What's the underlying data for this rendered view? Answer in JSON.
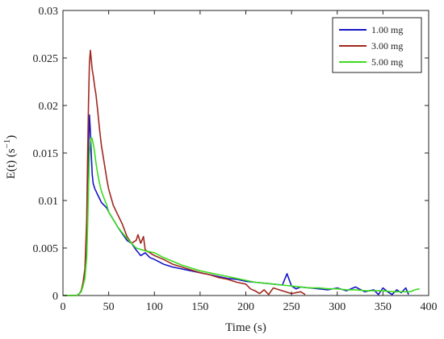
{
  "chart_data": {
    "type": "line",
    "xlabel": "Time (s)",
    "ylabel": "E(t) (s",
    "ylabel_sup": "−1",
    "ylabel_close": ")",
    "xlim": [
      0,
      400
    ],
    "ylim": [
      0,
      0.03
    ],
    "grid": false,
    "legend_position": "top-right",
    "xticks": [
      0,
      50,
      100,
      150,
      200,
      250,
      300,
      350,
      400
    ],
    "xtick_labels": [
      "0",
      "50",
      "100",
      "150",
      "200",
      "250",
      "300",
      "350",
      "400"
    ],
    "yticks": [
      0,
      0.005,
      0.01,
      0.015,
      0.02,
      0.025,
      0.03
    ],
    "ytick_labels": [
      "0",
      "0.005",
      "0.01",
      "0.015",
      "0.02",
      "0.025",
      "0.03"
    ],
    "series": [
      {
        "name": "1.00 mg",
        "color": "#1414c8",
        "x": [
          0,
          10,
          15,
          18,
          20,
          22,
          24,
          26,
          27,
          28,
          29,
          30,
          31,
          32,
          33,
          34,
          35,
          36,
          38,
          40,
          42,
          45,
          48,
          50,
          55,
          60,
          65,
          70,
          75,
          80,
          85,
          90,
          95,
          100,
          110,
          120,
          130,
          140,
          150,
          160,
          170,
          180,
          190,
          200,
          210,
          220,
          230,
          240,
          245,
          250,
          255,
          260,
          270,
          280,
          290,
          300,
          310,
          320,
          330,
          340,
          345,
          350,
          355,
          360,
          365,
          370,
          375,
          378
        ],
        "y": [
          0,
          0,
          0,
          0.0002,
          0.0005,
          0.0012,
          0.0022,
          0.006,
          0.011,
          0.0158,
          0.019,
          0.0172,
          0.0148,
          0.0128,
          0.0118,
          0.0115,
          0.0112,
          0.011,
          0.0106,
          0.0102,
          0.0098,
          0.0095,
          0.0092,
          0.0088,
          0.008,
          0.0072,
          0.0065,
          0.0058,
          0.0055,
          0.0048,
          0.0042,
          0.0045,
          0.004,
          0.0038,
          0.0033,
          0.003,
          0.0028,
          0.0026,
          0.0024,
          0.0022,
          0.002,
          0.0018,
          0.0017,
          0.0015,
          0.0014,
          0.0013,
          0.0012,
          0.0011,
          0.0023,
          0.001,
          0.0007,
          0.0009,
          0.0008,
          0.0007,
          0.0006,
          0.0008,
          0.0005,
          0.0009,
          0.0004,
          0.0006,
          0.0001,
          0.0008,
          0.0004,
          0.0001,
          0.0006,
          0.0003,
          0.0008,
          0.0001
        ]
      },
      {
        "name": "3.00 mg",
        "color": "#a0281e",
        "x": [
          0,
          10,
          15,
          18,
          20,
          22,
          24,
          26,
          27,
          28,
          29,
          30,
          31,
          32,
          33,
          34,
          35,
          36,
          38,
          40,
          42,
          45,
          48,
          50,
          55,
          60,
          65,
          70,
          75,
          80,
          82,
          85,
          88,
          90,
          95,
          100,
          110,
          120,
          130,
          140,
          150,
          160,
          170,
          180,
          190,
          200,
          205,
          210,
          215,
          220,
          225,
          230,
          240,
          250,
          260,
          265
        ],
        "y": [
          0,
          0,
          0,
          0.0002,
          0.0005,
          0.0014,
          0.0028,
          0.008,
          0.015,
          0.0205,
          0.0245,
          0.0258,
          0.0248,
          0.0238,
          0.0232,
          0.0225,
          0.0218,
          0.0212,
          0.0195,
          0.0175,
          0.0158,
          0.014,
          0.0122,
          0.0112,
          0.0095,
          0.0085,
          0.0075,
          0.0062,
          0.0055,
          0.0058,
          0.0064,
          0.0055,
          0.0062,
          0.0048,
          0.0045,
          0.0042,
          0.0038,
          0.0033,
          0.003,
          0.0027,
          0.0024,
          0.0022,
          0.0019,
          0.0017,
          0.0014,
          0.0012,
          0.0007,
          0.0005,
          0.0002,
          0.0006,
          0.0001,
          0.0008,
          0.0005,
          0.0002,
          0.0004,
          0.0001
        ]
      },
      {
        "name": "5.00 mg",
        "color": "#3cdc1e",
        "x": [
          0,
          10,
          15,
          18,
          20,
          22,
          24,
          26,
          27,
          28,
          29,
          30,
          31,
          32,
          33,
          34,
          35,
          36,
          38,
          40,
          42,
          45,
          48,
          50,
          55,
          60,
          65,
          70,
          75,
          80,
          90,
          100,
          110,
          120,
          130,
          140,
          150,
          160,
          170,
          180,
          190,
          200,
          210,
          220,
          230,
          240,
          250,
          260,
          270,
          280,
          290,
          300,
          310,
          320,
          330,
          340,
          350,
          360,
          370,
          380,
          385,
          390
        ],
        "y": [
          0,
          0,
          0,
          0.0002,
          0.0004,
          0.001,
          0.0018,
          0.004,
          0.0075,
          0.0115,
          0.0148,
          0.0162,
          0.0166,
          0.0165,
          0.016,
          0.0155,
          0.0148,
          0.014,
          0.0128,
          0.0118,
          0.011,
          0.0102,
          0.0095,
          0.0088,
          0.008,
          0.0072,
          0.0066,
          0.006,
          0.0055,
          0.005,
          0.0047,
          0.0045,
          0.004,
          0.0036,
          0.0032,
          0.0029,
          0.0026,
          0.0024,
          0.0022,
          0.002,
          0.0018,
          0.0016,
          0.0014,
          0.0013,
          0.0012,
          0.0011,
          0.001,
          0.0009,
          0.0008,
          0.0008,
          0.0007,
          0.0007,
          0.0006,
          0.0006,
          0.0005,
          0.0005,
          0.0005,
          0.0004,
          0.0004,
          0.0004,
          0.0006,
          0.0007
        ]
      }
    ]
  }
}
